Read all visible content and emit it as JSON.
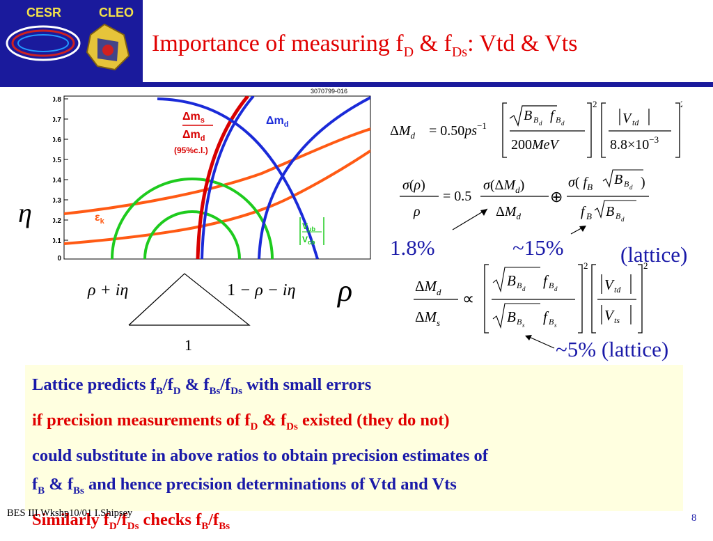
{
  "logo": {
    "left": "CESR",
    "right": "CLEO"
  },
  "title": {
    "prefix": "Importance of measuring f",
    "sub1": "D",
    "mid": " & f",
    "sub2": "Ds",
    "suffix": ": Vtd & Vts"
  },
  "plot": {
    "code": "3070799-016",
    "y_ticks": [
      "0.8",
      "0.7",
      "0.6",
      "0.5",
      "0.4",
      "0.3",
      "0.2",
      "0.1",
      "0"
    ],
    "ratio_label": {
      "num": "Δm",
      "num_sub": "s",
      "den": "Δm",
      "den_sub": "d",
      "cl": "(95%c.l.)"
    },
    "dmd_label": {
      "main": "Δm",
      "sub": "d"
    },
    "eps_label": {
      "main": "ε",
      "sub": "k"
    },
    "vub_label": {
      "num": "V",
      "num_sub": "ub",
      "den": "V",
      "den_sub": "cb"
    },
    "eta_axis": "η",
    "rho_axis": "ρ"
  },
  "triangle": {
    "left": "ρ + iη",
    "right_prefix": "1",
    "right": "− ρ − iη",
    "base": "1"
  },
  "annotations": {
    "pct1": "1.8%",
    "pct2": "~15%",
    "lattice1": "(lattice)",
    "pct3": "~5%",
    "lattice2": "(lattice)"
  },
  "box": {
    "line1": {
      "a": "Lattice predicts  f",
      "s1": "B",
      "b": "/f",
      "s2": "D",
      "c": "  &  f",
      "s3": "Bs",
      "d": "/f",
      "s4": "Ds",
      "e": "  with small errors"
    },
    "line2": {
      "a": "if precision measurements of  f",
      "s1": "D",
      "b": " & f",
      "s2": "Ds",
      "c": " existed (they do not)"
    },
    "line3": "could substitute in above ratios to obtain precision estimates of",
    "line4": {
      "a": "f",
      "s1": "B",
      "b": " & f",
      "s2": "Bs",
      "c": " and hence precision determinations of Vtd and Vts"
    },
    "line5": {
      "a": "Similarly f",
      "s1": "D",
      "b": "/f",
      "s2": "Ds",
      "c": "  checks f",
      "s3": "B",
      "d": "/f",
      "s4": "Bs"
    }
  },
  "footer": "BES III Wkshp10/01 I.Shipsey",
  "page_number": "8",
  "colors": {
    "navy": "#1a1a9c",
    "title_red": "#e00000",
    "text_blue": "#1a1aa8",
    "box_bg": "#ffffe0",
    "curve_orange": "#ff5a14",
    "curve_green": "#1ecb1e",
    "curve_blue": "#1a2ad8",
    "curve_red": "#d80000"
  }
}
